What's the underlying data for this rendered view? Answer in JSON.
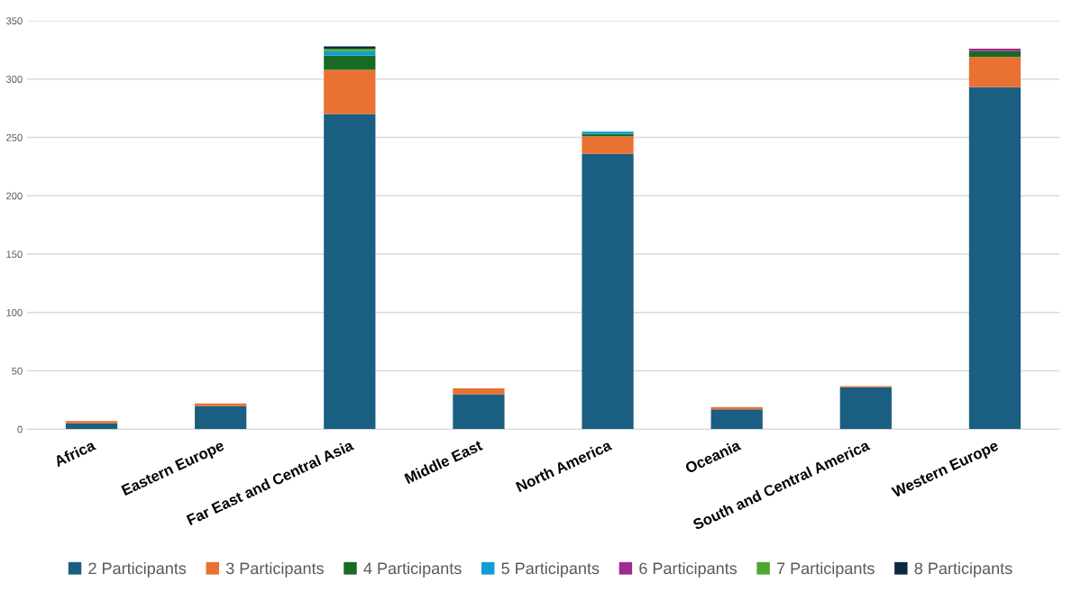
{
  "chart_data": {
    "type": "bar",
    "stacked": true,
    "categories": [
      "Africa",
      "Eastern Europe",
      "Far East and Central Asia",
      "Middle East",
      "North America",
      "Oceania",
      "South and Central America",
      "Western Europe"
    ],
    "series": [
      {
        "name": "2 Participants",
        "color": "#1a5e82",
        "values": [
          5,
          20,
          270,
          30,
          236,
          17,
          36,
          293
        ]
      },
      {
        "name": "3 Participants",
        "color": "#e97132",
        "values": [
          2,
          2,
          38,
          5,
          15,
          2,
          1,
          26
        ]
      },
      {
        "name": "4 Participants",
        "color": "#196b24",
        "values": [
          0,
          0,
          12,
          0,
          2,
          0,
          0,
          5
        ]
      },
      {
        "name": "5 Participants",
        "color": "#0f9ed5",
        "values": [
          0,
          0,
          4,
          0,
          2,
          0,
          0,
          0
        ]
      },
      {
        "name": "6 Participants",
        "color": "#a02b93",
        "values": [
          0,
          0,
          0,
          0,
          0,
          0,
          0,
          2
        ]
      },
      {
        "name": "7 Participants",
        "color": "#4ea72e",
        "values": [
          0,
          0,
          2,
          0,
          0,
          0,
          0,
          0
        ]
      },
      {
        "name": "8 Participants",
        "color": "#0e2841",
        "values": [
          0,
          0,
          2,
          0,
          0,
          0,
          0,
          0
        ]
      }
    ],
    "ylim": [
      0,
      350
    ],
    "yticks": [
      0,
      50,
      100,
      150,
      200,
      250,
      300,
      350
    ],
    "grid": "y",
    "legend": "bottom"
  }
}
